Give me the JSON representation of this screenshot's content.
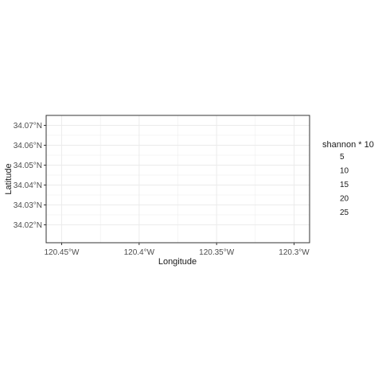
{
  "chart_data": {
    "type": "scatter",
    "title": "",
    "xlabel": "Longitude",
    "ylabel": "Latitude",
    "xlim": [
      -120.46,
      -120.29
    ],
    "ylim": [
      34.011,
      34.075
    ],
    "x_ticks": [
      {
        "value": -120.45,
        "label": "120.45°W"
      },
      {
        "value": -120.4,
        "label": "120.4°W"
      },
      {
        "value": -120.35,
        "label": "120.35°W"
      },
      {
        "value": -120.3,
        "label": "120.3°W"
      }
    ],
    "y_ticks": [
      {
        "value": 34.02,
        "label": "34.02°N"
      },
      {
        "value": 34.03,
        "label": "34.03°N"
      },
      {
        "value": 34.04,
        "label": "34.04°N"
      },
      {
        "value": 34.05,
        "label": "34.05°N"
      },
      {
        "value": 34.06,
        "label": "34.06°N"
      },
      {
        "value": 34.07,
        "label": "34.07°N"
      }
    ],
    "grid": true,
    "points": [],
    "legend": {
      "title": "shannon * 10",
      "placement": "right",
      "entries": [
        "5",
        "10",
        "15",
        "20",
        "25"
      ]
    }
  },
  "colors": {
    "background": "#ffffff",
    "panel_border": "#333333",
    "grid": "#ebebeb",
    "text": "#1a1a1a",
    "tick_text": "#4d4d4d"
  }
}
